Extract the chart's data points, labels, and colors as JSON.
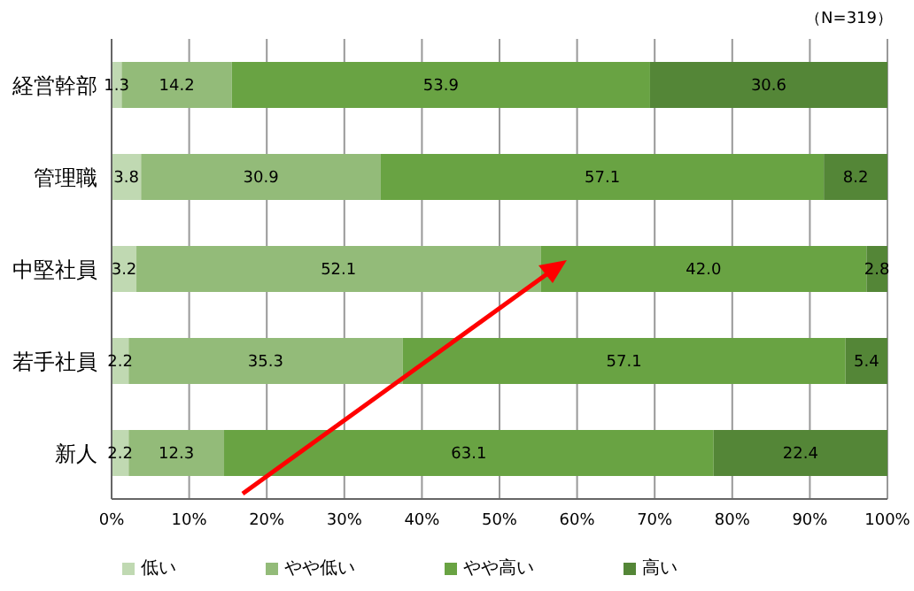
{
  "chart_data": {
    "type": "bar",
    "orientation": "horizontal",
    "stacked": true,
    "categories": [
      "経営幹部",
      "管理職",
      "中堅社員",
      "若手社員",
      "新人"
    ],
    "series": [
      {
        "name": "低い",
        "color": "#c0d9b2",
        "values": [
          1.3,
          3.8,
          3.2,
          2.2,
          2.2
        ],
        "value_labels": [
          "1.3",
          "3.8",
          "3.2",
          "2.2",
          "2.2"
        ]
      },
      {
        "name": "やや低い",
        "color": "#93bb79",
        "values": [
          14.2,
          30.9,
          52.1,
          35.3,
          12.3
        ],
        "value_labels": [
          "14.2",
          "30.9",
          "52.1",
          "35.3",
          "12.3"
        ]
      },
      {
        "name": "やや高い",
        "color": "#69a343",
        "values": [
          53.9,
          57.1,
          42.0,
          57.1,
          63.1
        ],
        "value_labels": [
          "53.9",
          "57.1",
          "42.0",
          "57.1",
          "63.1"
        ]
      },
      {
        "name": "高い",
        "color": "#548637",
        "values": [
          30.6,
          8.2,
          2.8,
          5.4,
          22.4
        ],
        "value_labels": [
          "30.6",
          "8.2",
          "2.8",
          "5.4",
          "22.4"
        ]
      }
    ],
    "xlim": [
      0,
      100
    ],
    "xticks": [
      {
        "value": 0,
        "label": "0%"
      },
      {
        "value": 10,
        "label": "10%"
      },
      {
        "value": 20,
        "label": "20%"
      },
      {
        "value": 30,
        "label": "30%"
      },
      {
        "value": 40,
        "label": "40%"
      },
      {
        "value": 50,
        "label": "50%"
      },
      {
        "value": 60,
        "label": "60%"
      },
      {
        "value": 70,
        "label": "70%"
      },
      {
        "value": 80,
        "label": "80%"
      },
      {
        "value": 90,
        "label": "90%"
      },
      {
        "value": 100,
        "label": "100%"
      }
    ],
    "grid": "x",
    "legend": "bottom",
    "annotations": [
      "（N=319）"
    ]
  }
}
